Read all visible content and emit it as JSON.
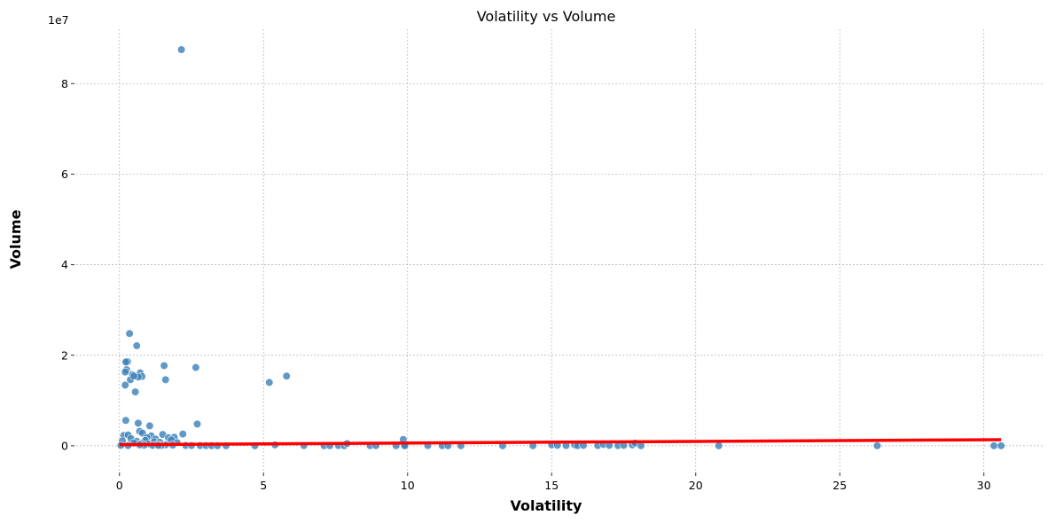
{
  "chart_data": {
    "type": "scatter",
    "title": "Volatility vs Volume",
    "xlabel": "Volatility",
    "ylabel": "Volume",
    "y_offset_label": "1e7",
    "xlim": [
      -1.5,
      32.1
    ],
    "ylim": [
      -5500000,
      92000000
    ],
    "x_ticks": [
      0,
      5,
      10,
      15,
      20,
      25,
      30
    ],
    "x_tick_labels": [
      "0",
      "5",
      "10",
      "15",
      "20",
      "25",
      "30"
    ],
    "y_ticks": [
      0,
      20000000,
      40000000,
      60000000,
      80000000
    ],
    "y_tick_labels": [
      "0",
      "2",
      "4",
      "6",
      "8"
    ],
    "grid": true,
    "colors": {
      "points": "#3a7fb8",
      "point_edge": "#ffffff",
      "trend": "#ff0000",
      "grid": "#b0b0b0"
    },
    "trend_line": {
      "x": [
        0,
        30.6
      ],
      "y": [
        250000,
        1350000
      ]
    },
    "points": {
      "x": [
        2.15,
        0.35,
        0.6,
        0.28,
        0.22,
        0.25,
        1.55,
        2.65,
        0.72,
        0.45,
        0.2,
        0.78,
        0.65,
        0.55,
        5.8,
        1.6,
        0.38,
        5.2,
        0.2,
        0.5,
        0.22,
        2.7,
        0.65,
        1.05,
        0.7,
        2.2,
        0.15,
        0.3,
        0.8,
        1.1,
        1.5,
        1.7,
        1.9,
        0.95,
        0.4,
        1.25,
        1.8,
        0.9,
        0.1,
        0.6,
        1.2,
        1.4,
        2.0,
        0.5,
        0.75,
        1.0,
        1.3,
        1.6,
        1.85,
        0.05,
        0.85,
        1.15,
        1.45,
        2.3,
        2.5,
        2.8,
        3.0,
        3.2,
        3.4,
        3.7,
        0.3,
        0.7,
        1.35,
        4.7,
        5.4,
        6.4,
        7.1,
        7.3,
        7.6,
        7.8,
        7.9,
        8.7,
        8.9,
        9.6,
        9.85,
        9.9,
        9.9,
        10.7,
        11.2,
        11.4,
        11.85,
        13.3,
        14.35,
        15.0,
        15.2,
        15.5,
        15.8,
        15.9,
        16.1,
        16.6,
        16.8,
        17.0,
        17.3,
        17.5,
        17.8,
        17.9,
        18.1,
        20.8,
        26.3,
        30.35,
        30.6
      ],
      "y": [
        87500000,
        24800000,
        22100000,
        18600000,
        18500000,
        16800000,
        17700000,
        17300000,
        16100000,
        15700000,
        16300000,
        15300000,
        15200000,
        11900000,
        15400000,
        14600000,
        14600000,
        14000000,
        13400000,
        15400000,
        5600000,
        4800000,
        5000000,
        4400000,
        3200000,
        2600000,
        2300000,
        2400000,
        2800000,
        2200000,
        2500000,
        1800000,
        1900000,
        1800000,
        1600000,
        1500000,
        1300000,
        1200000,
        1100000,
        1000000,
        900000,
        800000,
        700000,
        600000,
        500000,
        400000,
        300000,
        200000,
        150000,
        100000,
        120000,
        90000,
        80000,
        70000,
        60000,
        50000,
        40000,
        30000,
        20000,
        10000,
        50000,
        200000,
        100000,
        10000,
        200000,
        50000,
        20000,
        30000,
        50000,
        20000,
        500000,
        30000,
        40000,
        20000,
        1400000,
        100000,
        20000,
        50000,
        30000,
        10000,
        20000,
        10000,
        20000,
        200000,
        100000,
        50000,
        200000,
        30000,
        100000,
        50000,
        300000,
        100000,
        50000,
        100000,
        200000,
        600000,
        20000,
        10000,
        10000,
        10000,
        10000
      ]
    }
  }
}
